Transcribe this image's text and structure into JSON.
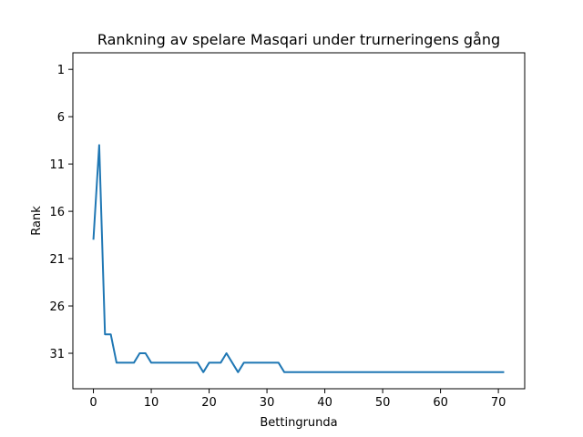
{
  "chart_data": {
    "type": "line",
    "title": "Rankning av spelare Masqari under trurneringens gång",
    "xlabel": "Bettingrunda",
    "ylabel": "Rank",
    "xlim": [
      -3.55,
      74.55
    ],
    "ylim": [
      34.75,
      -0.75
    ],
    "y_inverted": true,
    "x_ticks": [
      0,
      10,
      20,
      30,
      40,
      50,
      60,
      70
    ],
    "y_ticks": [
      1,
      6,
      11,
      16,
      21,
      26,
      31
    ],
    "grid": false,
    "legend": "none",
    "series": [
      {
        "color": "#1f77b4",
        "x": [
          0,
          1,
          2,
          3,
          4,
          5,
          6,
          7,
          8,
          9,
          10,
          11,
          12,
          13,
          14,
          15,
          16,
          17,
          18,
          19,
          20,
          21,
          22,
          23,
          24,
          25,
          26,
          27,
          28,
          29,
          30,
          31,
          32,
          33,
          34,
          35,
          36,
          37,
          38,
          39,
          40,
          41,
          42,
          43,
          44,
          45,
          46,
          47,
          48,
          49,
          50,
          51,
          52,
          53,
          54,
          55,
          56,
          57,
          58,
          59,
          60,
          61,
          62,
          63,
          64,
          65,
          66,
          67,
          68,
          69,
          70,
          71
        ],
        "y": [
          19,
          9,
          29,
          29,
          32,
          32,
          32,
          32,
          31,
          31,
          32,
          32,
          32,
          32,
          32,
          32,
          32,
          32,
          32,
          33,
          32,
          32,
          32,
          31,
          32,
          33,
          32,
          32,
          32,
          32,
          32,
          32,
          32,
          33,
          33,
          33,
          33,
          33,
          33,
          33,
          33,
          33,
          33,
          33,
          33,
          33,
          33,
          33,
          33,
          33,
          33,
          33,
          33,
          33,
          33,
          33,
          33,
          33,
          33,
          33,
          33,
          33,
          33,
          33,
          33,
          33,
          33,
          33,
          33,
          33,
          33,
          33
        ]
      }
    ]
  }
}
